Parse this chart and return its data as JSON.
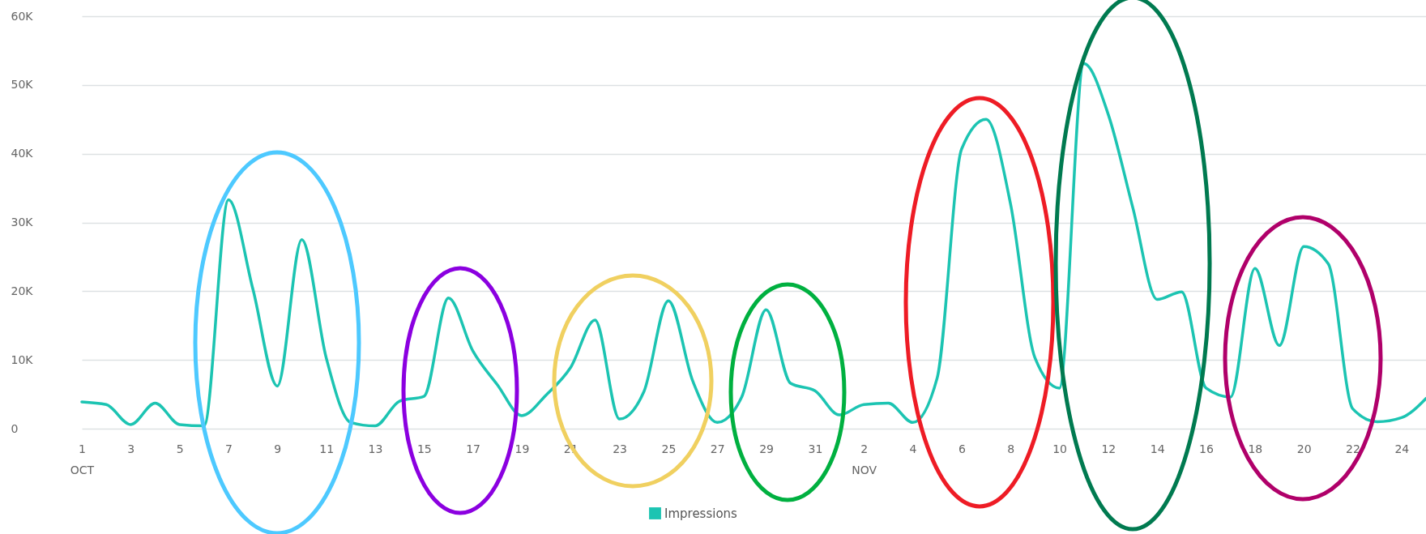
{
  "chart_data": {
    "type": "line",
    "x": [
      "--10-01",
      "--10-02",
      "--10-03",
      "--10-04",
      "--10-05",
      "--10-06",
      "--10-07",
      "--10-08",
      "--10-09",
      "--10-10",
      "--10-11",
      "--10-12",
      "--10-13",
      "--10-14",
      "--10-15",
      "--10-16",
      "--10-17",
      "--10-18",
      "--10-19",
      "--10-20",
      "--10-21",
      "--10-22",
      "--10-23",
      "--10-24",
      "--10-25",
      "--10-26",
      "--10-27",
      "--10-28",
      "--10-29",
      "--10-30",
      "--10-31",
      "--11-01",
      "--11-02",
      "--11-03",
      "--11-04",
      "--11-05",
      "--11-06",
      "--11-07",
      "--11-08",
      "--11-09",
      "--11-10",
      "--11-11",
      "--11-12",
      "--11-13",
      "--11-14",
      "--11-15",
      "--11-16",
      "--11-17",
      "--11-18",
      "--11-19",
      "--11-20",
      "--11-21",
      "--11-22",
      "--11-23",
      "--11-24",
      "--11-25"
    ],
    "series": [
      {
        "name": "Impressions",
        "color": "#1cc4b2",
        "values": [
          3900,
          3500,
          600,
          3700,
          600,
          400,
          33300,
          20300,
          6200,
          27500,
          10300,
          900,
          400,
          4000,
          4700,
          19000,
          11300,
          6400,
          1900,
          4900,
          8900,
          15800,
          1400,
          5400,
          18600,
          6900,
          900,
          4600,
          17300,
          6600,
          5500,
          2000,
          3500,
          3700,
          900,
          7400,
          40700,
          45000,
          32700,
          10300,
          5900,
          53100,
          45700,
          32200,
          18800,
          19900,
          5900,
          4600,
          23300,
          12100,
          26500,
          24000,
          2900,
          1000,
          1600,
          4400
        ]
      }
    ],
    "xlim": [
      "--10-01",
      "--11-25"
    ],
    "xticks": [
      {
        "value": "--10-01",
        "label": "1\nOCT"
      },
      {
        "value": "--10-03",
        "label": "3"
      },
      {
        "value": "--10-05",
        "label": "5"
      },
      {
        "value": "--10-07",
        "label": "7"
      },
      {
        "value": "--10-09",
        "label": "9"
      },
      {
        "value": "--10-11",
        "label": "11"
      },
      {
        "value": "--10-13",
        "label": "13"
      },
      {
        "value": "--10-15",
        "label": "15"
      },
      {
        "value": "--10-17",
        "label": "17"
      },
      {
        "value": "--10-19",
        "label": "19"
      },
      {
        "value": "--10-21",
        "label": "21"
      },
      {
        "value": "--10-23",
        "label": "23"
      },
      {
        "value": "--10-25",
        "label": "25"
      },
      {
        "value": "--10-27",
        "label": "27"
      },
      {
        "value": "--10-29",
        "label": "29"
      },
      {
        "value": "--10-31",
        "label": "31"
      },
      {
        "value": "--11-02",
        "label": "2\nNOV"
      },
      {
        "value": "--11-04",
        "label": "4"
      },
      {
        "value": "--11-06",
        "label": "6"
      },
      {
        "value": "--11-08",
        "label": "8"
      },
      {
        "value": "--11-10",
        "label": "10"
      },
      {
        "value": "--11-12",
        "label": "12"
      },
      {
        "value": "--11-14",
        "label": "14"
      },
      {
        "value": "--11-16",
        "label": "16"
      },
      {
        "value": "--11-18",
        "label": "18"
      },
      {
        "value": "--11-20",
        "label": "20"
      },
      {
        "value": "--11-22",
        "label": "22"
      },
      {
        "value": "--11-24",
        "label": "24"
      }
    ],
    "ylim": [
      0,
      60000
    ],
    "yticks": [
      0,
      {
        "value": 10000,
        "label": "10K"
      },
      {
        "value": 20000,
        "label": "20K"
      },
      {
        "value": 30000,
        "label": "30K"
      },
      {
        "value": 40000,
        "label": "40K"
      },
      {
        "value": 50000,
        "label": "50K"
      },
      {
        "value": 60000,
        "label": "60K"
      }
    ],
    "grid": "y",
    "legend": "bottom",
    "marker": "none",
    "line_style": "solid"
  }
}
